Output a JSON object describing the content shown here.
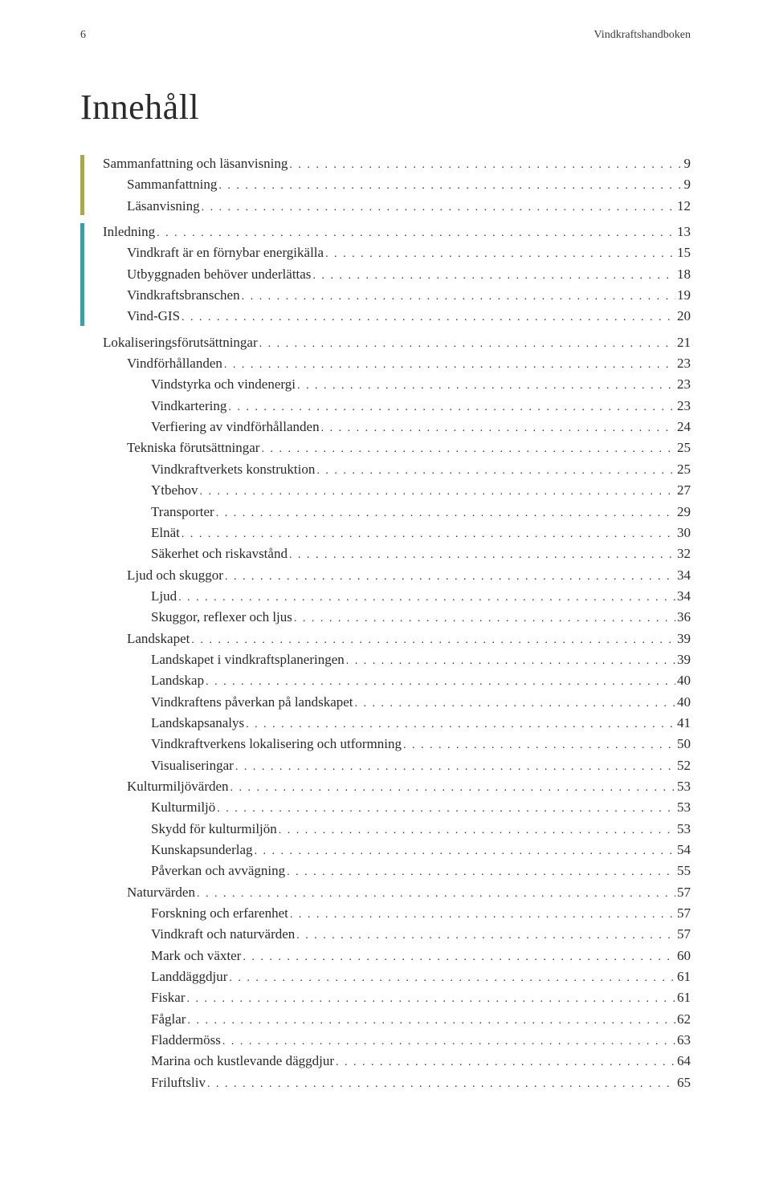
{
  "header": {
    "page_number": "6",
    "book_title": "Vindkraftshandboken"
  },
  "title": "Innehåll",
  "colors": {
    "bar_green": "#a7a94f",
    "bar_teal": "#3f9da3",
    "text": "#2a2a2a",
    "background": "#ffffff"
  },
  "sections": [
    {
      "bar_color": "#a7a94f",
      "entries": [
        {
          "indent": 0,
          "label": "Sammanfattning och läsanvisning",
          "page": "9"
        },
        {
          "indent": 1,
          "label": "Sammanfattning",
          "page": "9"
        },
        {
          "indent": 1,
          "label": "Läsanvisning",
          "page": "12"
        }
      ]
    },
    {
      "bar_color": "#3f9da3",
      "entries": [
        {
          "indent": 0,
          "label": "Inledning",
          "page": "13"
        },
        {
          "indent": 1,
          "label": "Vindkraft är en förnybar energikälla",
          "page": "15"
        },
        {
          "indent": 1,
          "label": "Utbyggnaden behöver underlättas",
          "page": "18"
        },
        {
          "indent": 1,
          "label": "Vindkraftsbranschen",
          "page": "19"
        },
        {
          "indent": 1,
          "label": "Vind-GIS",
          "page": "20"
        }
      ]
    }
  ],
  "post_entries": [
    {
      "indent": 0,
      "label": "Lokaliseringsförutsättningar",
      "page": "21"
    },
    {
      "indent": 1,
      "label": "Vindförhållanden",
      "page": "23"
    },
    {
      "indent": 2,
      "label": "Vindstyrka och vindenergi",
      "page": "23"
    },
    {
      "indent": 2,
      "label": "Vindkartering",
      "page": "23"
    },
    {
      "indent": 2,
      "label": "Verfiering av vindförhållanden",
      "page": "24"
    },
    {
      "indent": 1,
      "label": "Tekniska förutsättningar",
      "page": "25"
    },
    {
      "indent": 2,
      "label": "Vindkraftverkets konstruktion",
      "page": "25"
    },
    {
      "indent": 2,
      "label": "Ytbehov",
      "page": "27"
    },
    {
      "indent": 2,
      "label": "Transporter",
      "page": "29"
    },
    {
      "indent": 2,
      "label": "Elnät",
      "page": "30"
    },
    {
      "indent": 2,
      "label": "Säkerhet och riskavstånd",
      "page": "32"
    },
    {
      "indent": 1,
      "label": "Ljud och skuggor",
      "page": "34"
    },
    {
      "indent": 2,
      "label": "Ljud",
      "page": "34"
    },
    {
      "indent": 2,
      "label": "Skuggor, reflexer  och ljus",
      "page": "36"
    },
    {
      "indent": 1,
      "label": "Landskapet",
      "page": "39"
    },
    {
      "indent": 2,
      "label": "Landskapet i vindkraftsplaneringen",
      "page": "39"
    },
    {
      "indent": 2,
      "label": "Landskap",
      "page": "40"
    },
    {
      "indent": 2,
      "label": "Vindkraftens påverkan på landskapet",
      "page": "40"
    },
    {
      "indent": 2,
      "label": "Landskapsanalys",
      "page": "41"
    },
    {
      "indent": 2,
      "label": "Vindkraftverkens lokalisering och utformning",
      "page": "50"
    },
    {
      "indent": 2,
      "label": "Visualiseringar",
      "page": "52"
    },
    {
      "indent": 1,
      "label": "Kulturmiljövärden",
      "page": "53"
    },
    {
      "indent": 2,
      "label": "Kulturmiljö",
      "page": "53"
    },
    {
      "indent": 2,
      "label": "Skydd för kulturmiljön",
      "page": "53"
    },
    {
      "indent": 2,
      "label": "Kunskapsunderlag",
      "page": "54"
    },
    {
      "indent": 2,
      "label": "Påverkan och avvägning",
      "page": "55"
    },
    {
      "indent": 1,
      "label": "Naturvärden",
      "page": "57"
    },
    {
      "indent": 2,
      "label": "Forskning och erfarenhet",
      "page": "57"
    },
    {
      "indent": 2,
      "label": "Vindkraft och naturvärden",
      "page": "57"
    },
    {
      "indent": 2,
      "label": "Mark och växter",
      "page": "60"
    },
    {
      "indent": 2,
      "label": "Landdäggdjur",
      "page": "61"
    },
    {
      "indent": 2,
      "label": "Fiskar",
      "page": "61"
    },
    {
      "indent": 2,
      "label": "Fåglar",
      "page": "62"
    },
    {
      "indent": 2,
      "label": "Fladdermöss",
      "page": "63"
    },
    {
      "indent": 2,
      "label": "Marina och kustlevande däggdjur",
      "page": "64"
    },
    {
      "indent": 2,
      "label": "Friluftsliv",
      "page": "65"
    }
  ]
}
